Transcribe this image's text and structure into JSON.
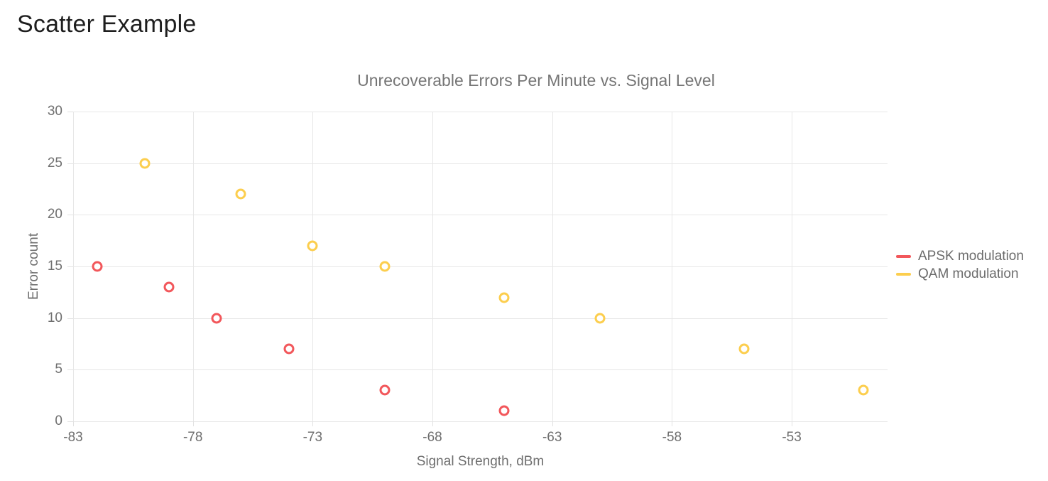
{
  "page": {
    "title": "Scatter Example"
  },
  "chart_data": {
    "type": "scatter",
    "title": "Unrecoverable Errors Per Minute vs. Signal Level",
    "xlabel": "Signal Strength, dBm",
    "ylabel": "Error count",
    "xlim": [
      -83,
      -49
    ],
    "ylim": [
      0,
      30
    ],
    "xticks": [
      -83,
      -78,
      -73,
      -68,
      -63,
      -58,
      -53
    ],
    "yticks": [
      0,
      5,
      10,
      15,
      20,
      25,
      30
    ],
    "grid": true,
    "legend_position": "right-center",
    "marker_style": "open-circle",
    "series": [
      {
        "name": "APSK modulation",
        "color": "#f2575b",
        "points": [
          [
            -82,
            15
          ],
          [
            -79,
            13
          ],
          [
            -77,
            10
          ],
          [
            -74,
            7
          ],
          [
            -70,
            3
          ],
          [
            -65,
            1
          ]
        ]
      },
      {
        "name": "QAM modulation",
        "color": "#fcce4e",
        "points": [
          [
            -80,
            25
          ],
          [
            -76,
            22
          ],
          [
            -73,
            17
          ],
          [
            -70,
            15
          ],
          [
            -65,
            12
          ],
          [
            -61,
            10
          ],
          [
            -55,
            7
          ],
          [
            -50,
            3
          ]
        ]
      }
    ]
  }
}
